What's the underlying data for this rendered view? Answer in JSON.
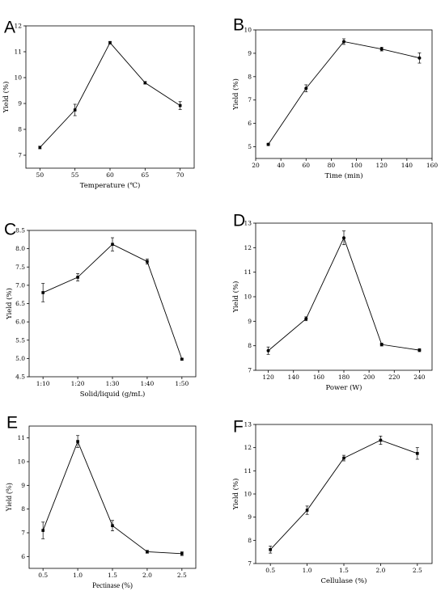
{
  "chart_data": [
    {
      "type": "line",
      "panel_label": "A",
      "xlabel": "Temperature (℃)",
      "ylabel": "Yield (%)",
      "x": [
        50,
        55,
        60,
        65,
        70
      ],
      "xlim": [
        48,
        72
      ],
      "xticks": [
        50,
        55,
        60,
        65,
        70
      ],
      "xticklabels": [
        "50",
        "55",
        "60",
        "65",
        "70"
      ],
      "ylim": [
        6.5,
        12
      ],
      "yticks": [
        7,
        8,
        9,
        10,
        11,
        12
      ],
      "series": [
        {
          "values": [
            7.3,
            8.75,
            11.35,
            9.8,
            8.92
          ],
          "errors": [
            0.05,
            0.22,
            0.05,
            0.05,
            0.15
          ]
        }
      ]
    },
    {
      "type": "line",
      "panel_label": "B",
      "xlabel": "Time (min)",
      "ylabel": "Yield (%)",
      "x": [
        30,
        60,
        90,
        120,
        150
      ],
      "xlim": [
        20,
        160
      ],
      "xticks": [
        20,
        40,
        60,
        80,
        100,
        120,
        140,
        160
      ],
      "xticklabels": [
        "20",
        "40",
        "60",
        "80",
        "100",
        "120",
        "140",
        "160"
      ],
      "ylim": [
        4.5,
        10
      ],
      "yticks": [
        5,
        6,
        7,
        8,
        9,
        10
      ],
      "series": [
        {
          "values": [
            5.1,
            7.5,
            9.5,
            9.18,
            8.8
          ],
          "errors": [
            0.05,
            0.15,
            0.12,
            0.08,
            0.22
          ]
        }
      ]
    },
    {
      "type": "line",
      "panel_label": "C",
      "xlabel": "Solid/liquid (g/mL)",
      "ylabel": "Yield (%)",
      "categories": [
        "1:10",
        "1:20",
        "1:30",
        "1:40",
        "1:50"
      ],
      "x": [
        1,
        2,
        3,
        4,
        5
      ],
      "xlim": [
        0.6,
        5.4
      ],
      "xticks": [
        1,
        2,
        3,
        4,
        5
      ],
      "xticklabels": [
        "1:10",
        "1:20",
        "1:30",
        "1:40",
        "1:50"
      ],
      "ylim": [
        4.5,
        8.5
      ],
      "yticks": [
        4.5,
        5.0,
        5.5,
        6.0,
        6.5,
        7.0,
        7.5,
        8.0,
        8.5
      ],
      "yticklabels": [
        "4.5",
        "5.0",
        "5.5",
        "6.0",
        "6.5",
        "7.0",
        "7.5",
        "8.0",
        "8.5"
      ],
      "series": [
        {
          "values": [
            6.8,
            7.22,
            8.12,
            7.65,
            4.98
          ],
          "errors": [
            0.25,
            0.1,
            0.18,
            0.07,
            0.02
          ]
        }
      ]
    },
    {
      "type": "line",
      "panel_label": "D",
      "xlabel": "Power (W)",
      "ylabel": "Yield (%)",
      "x": [
        120,
        150,
        180,
        210,
        240
      ],
      "xlim": [
        110,
        250
      ],
      "xticks": [
        120,
        140,
        160,
        180,
        200,
        220,
        240
      ],
      "xticklabels": [
        "120",
        "140",
        "160",
        "180",
        "200",
        "220",
        "240"
      ],
      "ylim": [
        7,
        13
      ],
      "yticks": [
        7,
        8,
        9,
        10,
        11,
        12,
        13
      ],
      "series": [
        {
          "values": [
            7.8,
            9.1,
            12.4,
            8.05,
            7.82
          ],
          "errors": [
            0.15,
            0.08,
            0.28,
            0.06,
            0.06
          ]
        }
      ]
    },
    {
      "type": "line",
      "panel_label": "E",
      "xlabel": "Pectinase (%)",
      "ylabel": "Yield (%)",
      "label_font": "alt",
      "x": [
        0.5,
        1.0,
        1.5,
        2.0,
        2.5
      ],
      "xlim": [
        0.3,
        2.7
      ],
      "xticks": [
        0.5,
        1.0,
        1.5,
        2.0,
        2.5
      ],
      "xticklabels": [
        "0.5",
        "1.0",
        "1.5",
        "2.0",
        "2.5"
      ],
      "ylim": [
        5.5,
        11.5
      ],
      "yticks": [
        6,
        7,
        8,
        9,
        10,
        11
      ],
      "series": [
        {
          "values": [
            7.1,
            10.85,
            7.3,
            6.2,
            6.12
          ],
          "errors": [
            0.35,
            0.25,
            0.22,
            0.06,
            0.08
          ]
        }
      ]
    },
    {
      "type": "line",
      "panel_label": "F",
      "xlabel": "Cellulase (%)",
      "ylabel": "Yield (%)",
      "x": [
        0.5,
        1.0,
        1.5,
        2.0,
        2.5
      ],
      "xlim": [
        0.3,
        2.7
      ],
      "xticks": [
        0.5,
        1.0,
        1.5,
        2.0,
        2.5
      ],
      "xticklabels": [
        "0.5",
        "1.0",
        "1.5",
        "2.0",
        "2.5"
      ],
      "ylim": [
        7,
        13
      ],
      "yticks": [
        7,
        8,
        9,
        10,
        11,
        12,
        13
      ],
      "series": [
        {
          "values": [
            7.6,
            9.3,
            11.55,
            12.32,
            11.75
          ],
          "errors": [
            0.15,
            0.18,
            0.12,
            0.18,
            0.25
          ]
        }
      ]
    }
  ]
}
